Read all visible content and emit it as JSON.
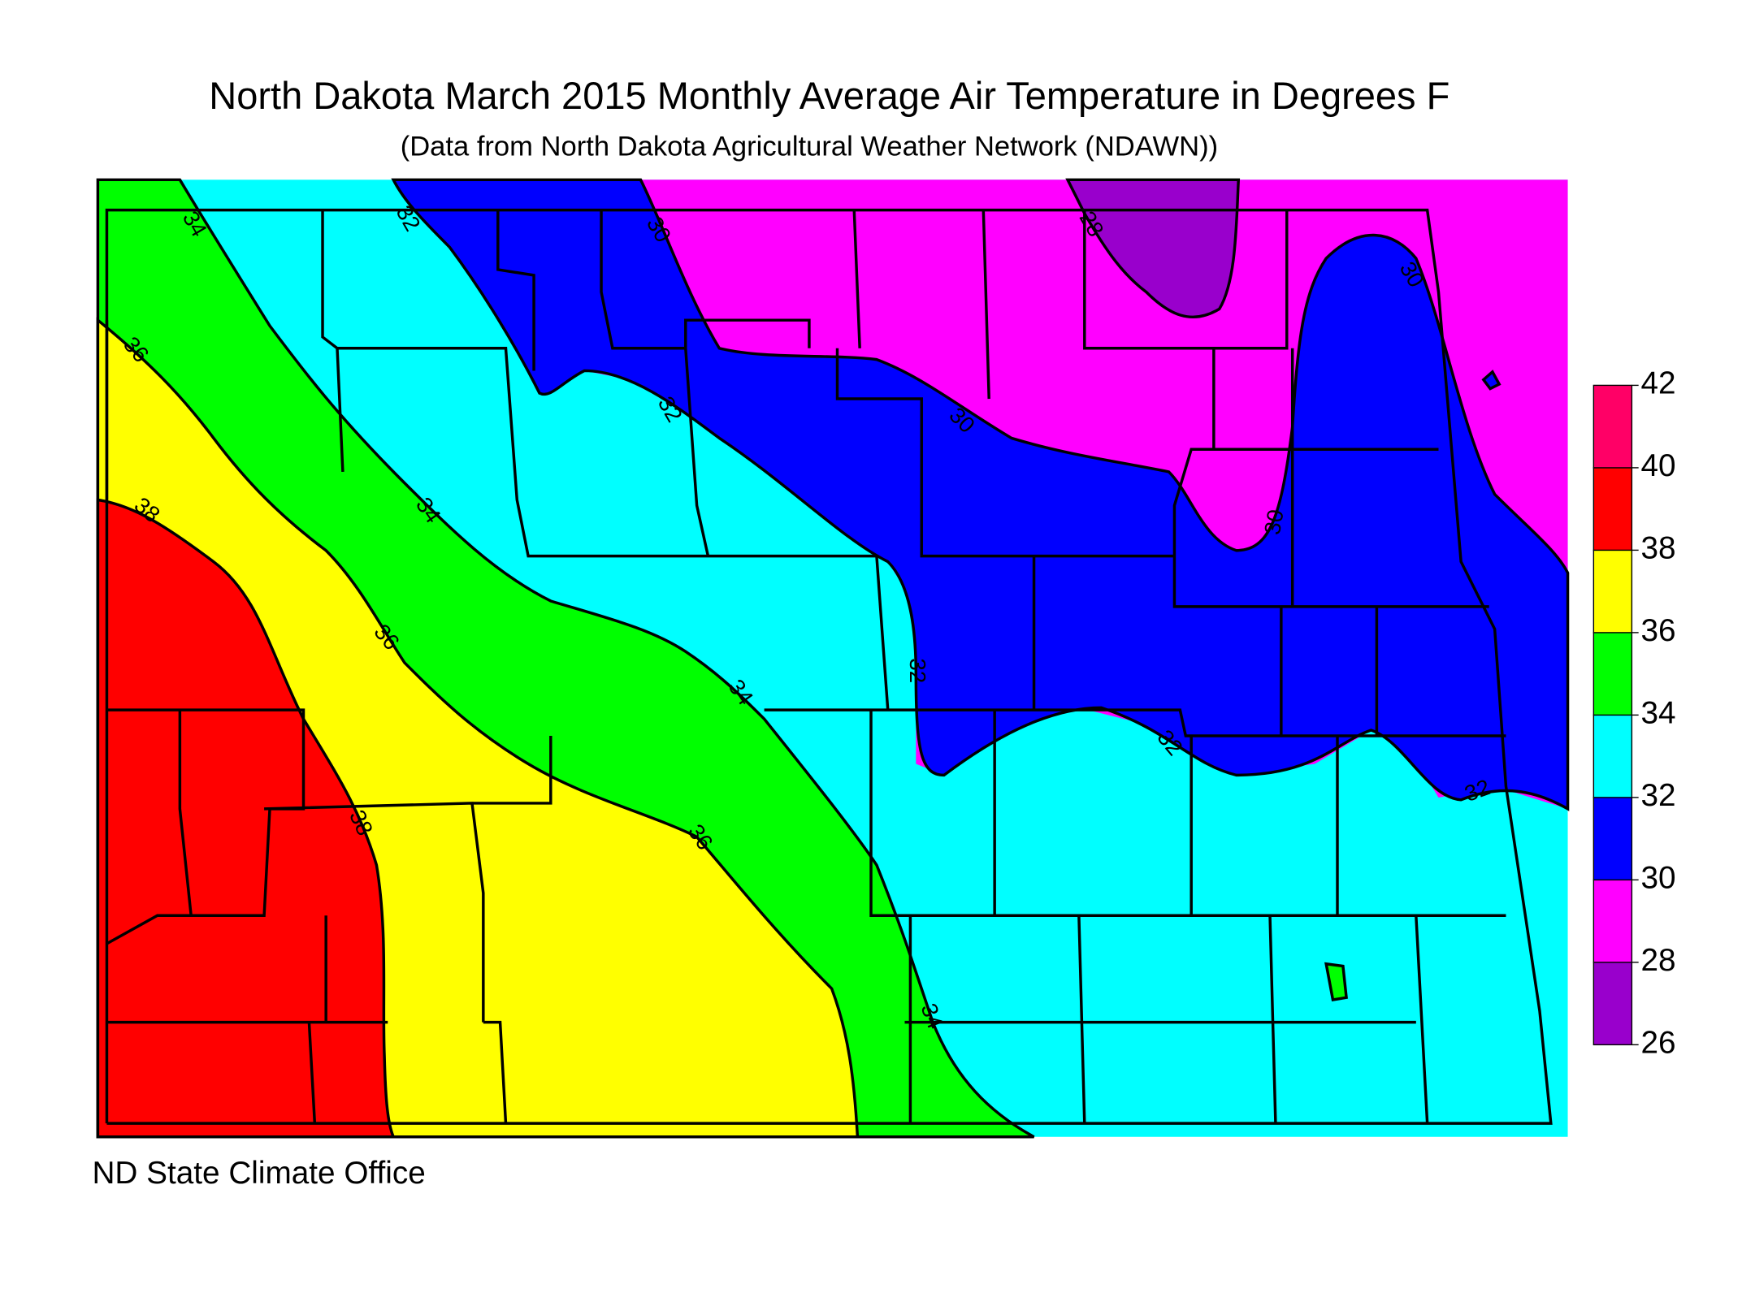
{
  "title": "North Dakota March 2015 Monthly Average Air Temperature in Degrees F",
  "subtitle": "(Data from North Dakota Agricultural Weather Network (NDAWN))",
  "credit": "ND State Climate Office",
  "legend": {
    "ticks": [
      26,
      28,
      30,
      32,
      34,
      36,
      38,
      40,
      42
    ],
    "colors": [
      "#9900cc",
      "#ff00ff",
      "#0000ff",
      "#00ffff",
      "#00ff00",
      "#ffff00",
      "#ff0000",
      "#ff0066"
    ]
  },
  "contour_labels": [
    34,
    32,
    30,
    28,
    30,
    36,
    32,
    30,
    34,
    38,
    30,
    36,
    32,
    34,
    32,
    38,
    36,
    32,
    34
  ]
}
